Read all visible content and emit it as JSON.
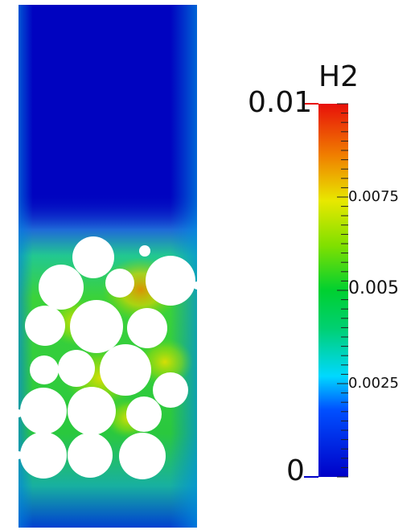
{
  "colorbar": {
    "title": "H2",
    "max_label": "0.01",
    "min_label": "0",
    "tick_labels": [
      "0.0075",
      "0.005",
      "0.0025"
    ],
    "range": [
      0,
      0.01
    ]
  },
  "colormap": {
    "name": "rainbow",
    "colors": [
      "#0000c0",
      "#00e0ff",
      "#00d040",
      "#e8e800",
      "#e8100a"
    ]
  },
  "field": {
    "background_color": "#0003c0",
    "particle_color": "#ffffff"
  }
}
